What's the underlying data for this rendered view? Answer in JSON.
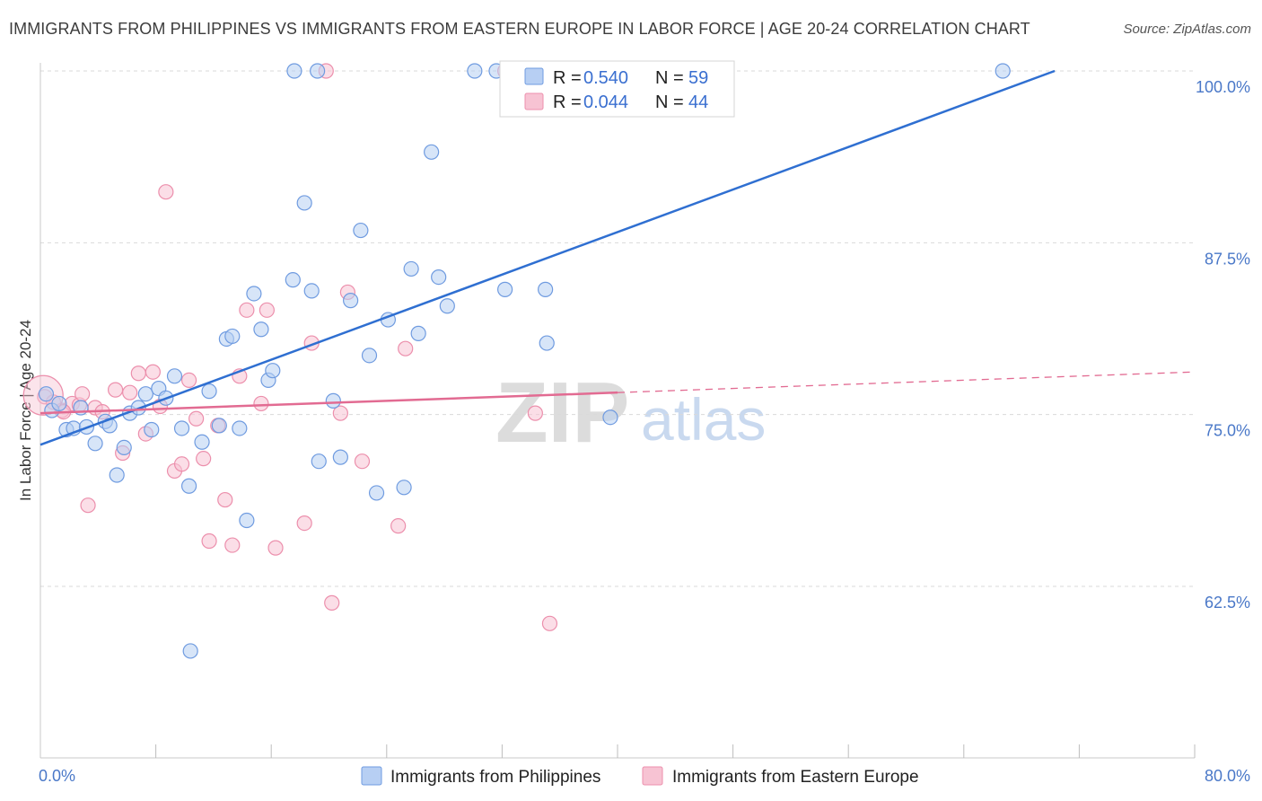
{
  "title": "IMMIGRANTS FROM PHILIPPINES VS IMMIGRANTS FROM EASTERN EUROPE IN LABOR FORCE | AGE 20-24 CORRELATION CHART",
  "source": "Source: ZipAtlas.com",
  "watermark": {
    "zip": "ZIP",
    "atlas": "atlas"
  },
  "colors": {
    "blue_fill": "#b7cff3",
    "blue_stroke": "#6f9be0",
    "blue_line": "#2f6fd1",
    "pink_fill": "#f7c3d3",
    "pink_stroke": "#ec8fac",
    "pink_line": "#e26b92",
    "grid": "#d9d9d9",
    "tick_text": "#4a78c8"
  },
  "legend": {
    "rows": [
      {
        "r_label": "R =",
        "r_value": "0.540",
        "n_label": "N =",
        "n_value": "59"
      },
      {
        "r_label": "R =",
        "r_value": "0.044",
        "n_label": "N =",
        "n_value": "44"
      }
    ]
  },
  "chart_data": {
    "type": "scatter",
    "title": "IMMIGRANTS FROM PHILIPPINES VS IMMIGRANTS FROM EASTERN EUROPE IN LABOR FORCE | AGE 20-24 CORRELATION CHART",
    "xlabel": "",
    "ylabel": "In Labor Force | Age 20-24",
    "xlim": [
      0,
      80
    ],
    "ylim": [
      50,
      101
    ],
    "x_tick_labels": [
      "0.0%",
      "80.0%"
    ],
    "y_ticks": [
      62.5,
      75.0,
      87.5,
      100.0
    ],
    "y_tick_labels": [
      "62.5%",
      "75.0%",
      "87.5%",
      "100.0%"
    ],
    "grid": true,
    "legend_position": "bottom",
    "series": [
      {
        "name": "Immigrants from Philippines",
        "color": "blue",
        "R": 0.54,
        "N": 59,
        "trend": {
          "x0": 0,
          "y0": 72.8,
          "x1": 70.3,
          "y1": 100.0,
          "dashed_to": null
        },
        "points": [
          [
            0.4,
            76.5
          ],
          [
            0.8,
            75.3
          ],
          [
            1.3,
            75.8
          ],
          [
            1.8,
            73.9
          ],
          [
            2.3,
            74.0
          ],
          [
            2.8,
            75.5
          ],
          [
            3.2,
            74.1
          ],
          [
            3.8,
            72.9
          ],
          [
            4.5,
            74.5
          ],
          [
            4.8,
            74.2
          ],
          [
            5.3,
            70.6
          ],
          [
            5.8,
            72.6
          ],
          [
            6.2,
            75.1
          ],
          [
            6.8,
            75.5
          ],
          [
            7.3,
            76.5
          ],
          [
            7.7,
            73.9
          ],
          [
            8.2,
            76.9
          ],
          [
            8.7,
            76.2
          ],
          [
            9.3,
            77.8
          ],
          [
            9.8,
            74.0
          ],
          [
            10.3,
            69.8
          ],
          [
            11.2,
            73.0
          ],
          [
            11.7,
            76.7
          ],
          [
            12.4,
            74.2
          ],
          [
            12.9,
            80.5
          ],
          [
            13.3,
            80.7
          ],
          [
            13.8,
            74.0
          ],
          [
            14.3,
            67.3
          ],
          [
            14.8,
            83.8
          ],
          [
            15.3,
            81.2
          ],
          [
            15.8,
            77.5
          ],
          [
            16.1,
            78.2
          ],
          [
            17.5,
            84.8
          ],
          [
            18.3,
            90.4
          ],
          [
            18.8,
            84.0
          ],
          [
            19.3,
            71.6
          ],
          [
            20.3,
            76.0
          ],
          [
            20.8,
            71.9
          ],
          [
            21.5,
            83.3
          ],
          [
            22.2,
            88.4
          ],
          [
            22.8,
            79.3
          ],
          [
            23.3,
            69.3
          ],
          [
            24.1,
            81.9
          ],
          [
            25.2,
            69.7
          ],
          [
            25.7,
            85.6
          ],
          [
            26.2,
            80.9
          ],
          [
            27.1,
            94.1
          ],
          [
            27.6,
            85.0
          ],
          [
            28.2,
            82.9
          ],
          [
            32.2,
            84.1
          ],
          [
            35.0,
            84.1
          ],
          [
            35.1,
            80.2
          ],
          [
            39.5,
            74.8
          ],
          [
            17.6,
            100.0
          ],
          [
            19.2,
            100.0
          ],
          [
            30.1,
            100.0
          ],
          [
            31.6,
            100.0
          ],
          [
            66.7,
            100.0
          ],
          [
            10.4,
            57.8
          ]
        ]
      },
      {
        "name": "Immigrants from Eastern Europe",
        "color": "pink",
        "R": 0.044,
        "N": 44,
        "trend": {
          "x0": 0,
          "y0": 75.1,
          "x1": 40.0,
          "y1": 76.6,
          "dashed_to": [
            80.0,
            78.1
          ]
        },
        "points": [
          [
            0.3,
            76.3
          ],
          [
            0.9,
            75.9
          ],
          [
            1.5,
            75.3
          ],
          [
            2.2,
            75.8
          ],
          [
            2.7,
            75.7
          ],
          [
            2.9,
            76.5
          ],
          [
            3.3,
            68.4
          ],
          [
            3.8,
            75.5
          ],
          [
            4.3,
            75.2
          ],
          [
            5.2,
            76.8
          ],
          [
            5.7,
            72.2
          ],
          [
            6.2,
            76.6
          ],
          [
            6.8,
            78.0
          ],
          [
            7.3,
            73.6
          ],
          [
            7.8,
            78.1
          ],
          [
            8.3,
            75.6
          ],
          [
            8.7,
            91.2
          ],
          [
            9.3,
            70.9
          ],
          [
            9.8,
            71.4
          ],
          [
            10.3,
            77.5
          ],
          [
            10.8,
            74.7
          ],
          [
            11.3,
            71.8
          ],
          [
            11.7,
            65.8
          ],
          [
            12.3,
            74.2
          ],
          [
            12.8,
            68.8
          ],
          [
            13.3,
            65.5
          ],
          [
            13.8,
            77.8
          ],
          [
            14.3,
            82.6
          ],
          [
            15.3,
            75.8
          ],
          [
            15.7,
            82.6
          ],
          [
            16.3,
            65.3
          ],
          [
            18.3,
            67.1
          ],
          [
            18.8,
            80.2
          ],
          [
            20.2,
            61.3
          ],
          [
            20.8,
            75.1
          ],
          [
            21.3,
            83.9
          ],
          [
            22.3,
            71.6
          ],
          [
            24.8,
            66.9
          ],
          [
            25.3,
            79.8
          ],
          [
            34.3,
            75.1
          ],
          [
            35.3,
            59.8
          ],
          [
            19.8,
            100.0
          ],
          [
            32.2,
            100.0
          ],
          [
            1.6,
            75.2
          ]
        ]
      }
    ]
  }
}
